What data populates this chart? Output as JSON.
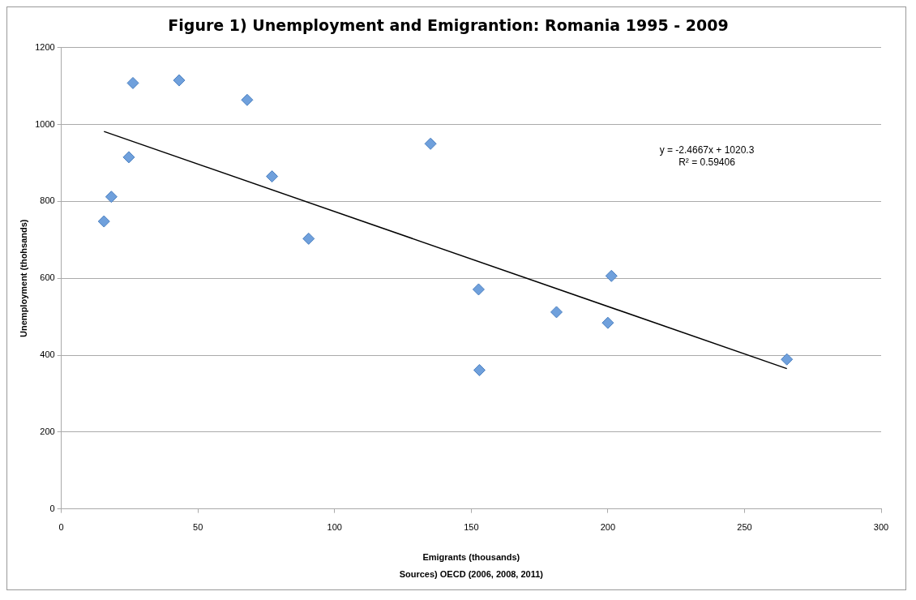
{
  "chart_data": {
    "type": "scatter",
    "title": "Figure 1) Unemployment and Emigrantion: Romania 1995 - 2009",
    "xlabel": "Emigrants (thousands)",
    "ylabel": "Unemployment (thohsands)",
    "annotations": [
      "y = -2.4667x + 1020.3",
      "R² = 0.59406",
      "Sources) OECD (2006, 2008, 2011)"
    ],
    "series": [
      {
        "color": "#6fa0dc",
        "x": [
          15.6,
          18.3,
          24.7,
          26.2,
          43.1,
          68,
          77.1,
          90.5,
          135.1,
          152.7,
          153,
          181.2,
          200,
          201.3,
          265.5
        ],
        "values": [
          748,
          812,
          915,
          1108,
          1115,
          1064,
          865,
          703,
          950,
          571,
          361,
          512,
          484,
          606,
          389
        ]
      },
      {
        "type": "line",
        "color": "#000000",
        "marker": "none",
        "x": [
          15.6,
          265.5
        ],
        "values": [
          982,
          365
        ]
      }
    ],
    "xlim": [
      0,
      300
    ],
    "xticks": [
      0,
      50,
      100,
      150,
      200,
      250,
      300
    ],
    "ylim": [
      0,
      1200
    ],
    "yticks": [
      0,
      200,
      400,
      600,
      800,
      1000,
      1200
    ],
    "grid": "y",
    "legend": false,
    "marker": "diamond"
  }
}
